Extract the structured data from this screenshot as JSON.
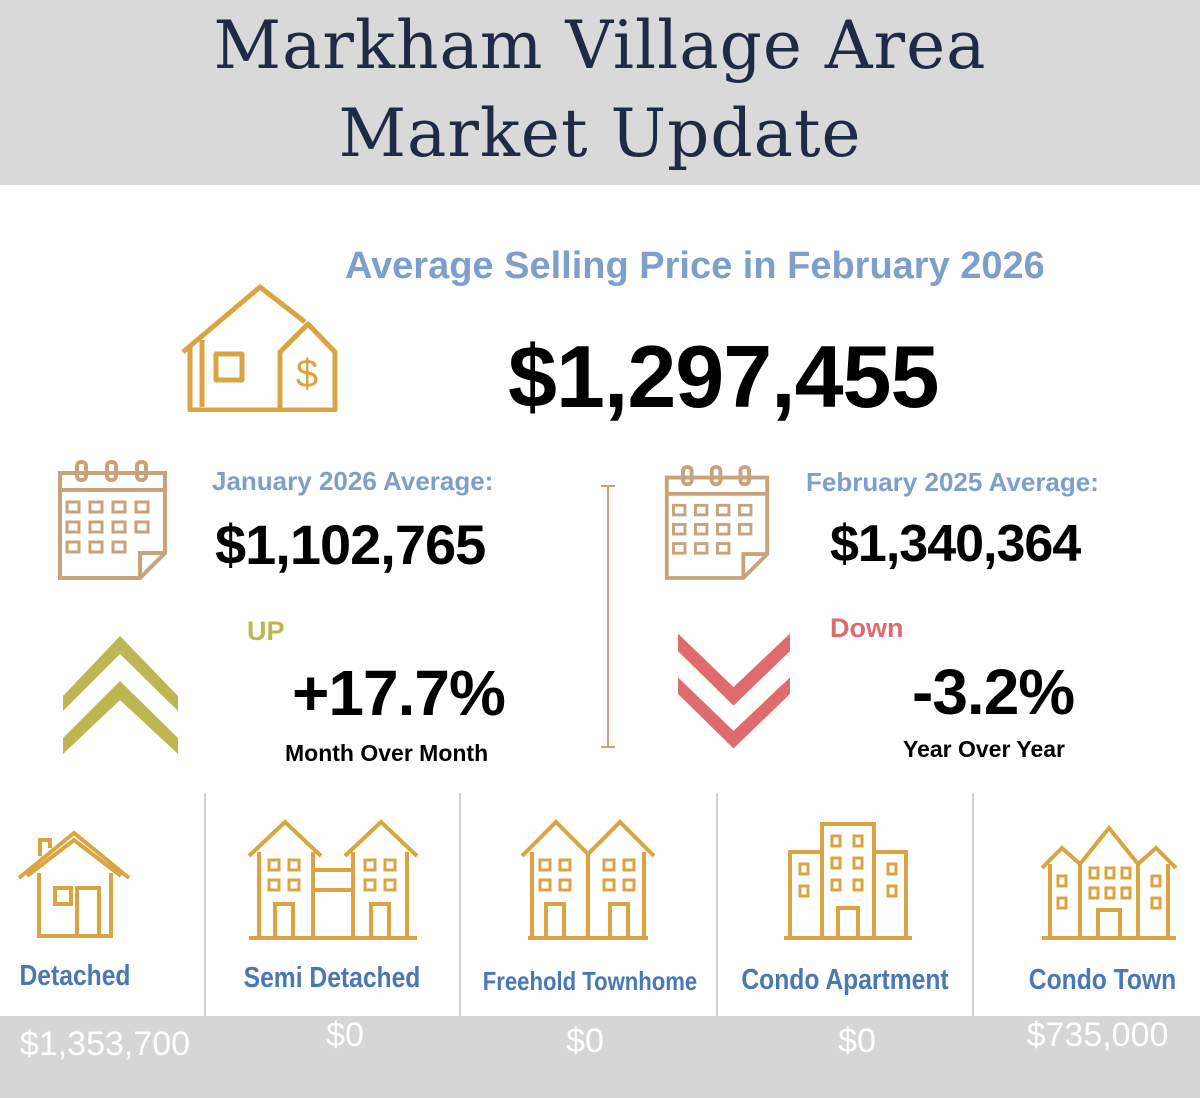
{
  "header": {
    "title_line1": "Markham Village Area",
    "title_line2": "Market Update"
  },
  "main": {
    "subtitle": "Average Selling Price in February 2026",
    "price": "$1,297,455"
  },
  "left": {
    "label": "January 2026 Average:",
    "value": "$1,102,765",
    "direction": "UP",
    "change": "+17.7%",
    "caption": "Month Over Month"
  },
  "right": {
    "label": "February 2025 Average:",
    "value": "$1,340,364",
    "direction": "Down",
    "change": "-3.2%",
    "caption": "Year Over Year"
  },
  "types": [
    {
      "label": "Detached",
      "value": "$1,353,700"
    },
    {
      "label": "Semi Detached",
      "value": "$0"
    },
    {
      "label": "Freehold Townhome",
      "value": "$0"
    },
    {
      "label": "Condo Apartment",
      "value": "$0"
    },
    {
      "label": "Condo Town",
      "value": "$735,000"
    }
  ],
  "colors": {
    "navy": "#1f2a44",
    "blue": "#7d9fca",
    "gold": "#d9a441",
    "tan": "#c8a27a",
    "olive": "#bcb752",
    "red": "#e06b6f"
  }
}
